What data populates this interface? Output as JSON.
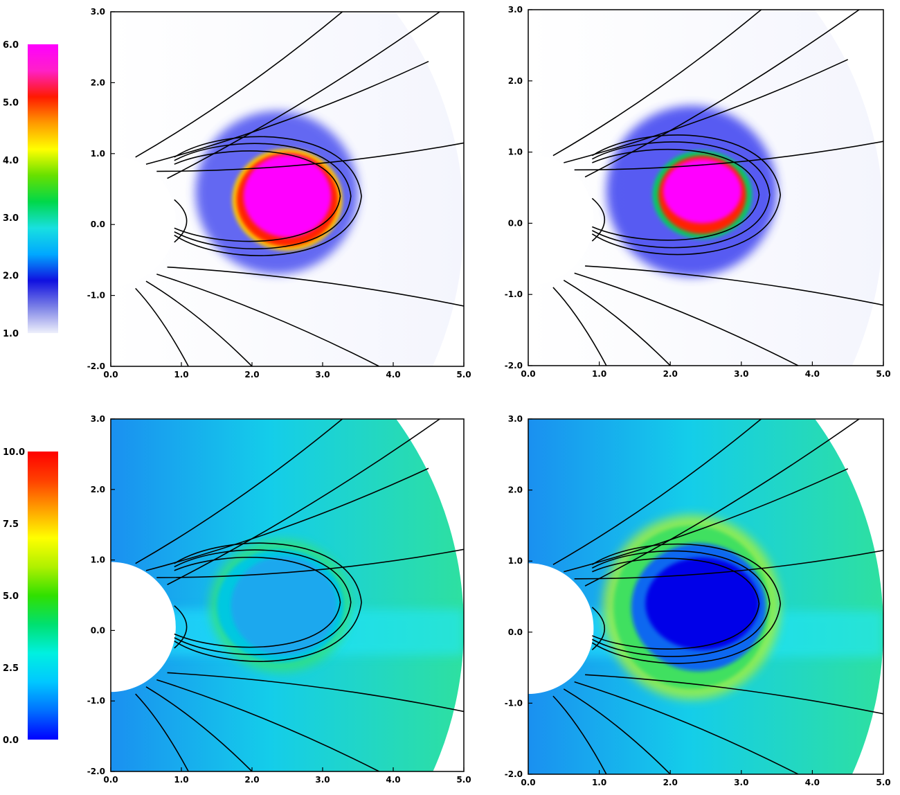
{
  "figure": {
    "colorbars": [
      {
        "id": "top",
        "min": 1.0,
        "max": 6.0,
        "tick_labels": [
          "6.0",
          "5.0",
          "4.0",
          "3.0",
          "2.0",
          "1.0"
        ],
        "stops": [
          "#eef0fb",
          "#7b80e6",
          "#1010e0",
          "#00a8ff",
          "#18e0e0",
          "#00d84a",
          "#66e000",
          "#ffff00",
          "#ff9a00",
          "#ff1a00",
          "#ff20c8",
          "#ff00ff"
        ]
      },
      {
        "id": "bottom",
        "min": 0.0,
        "max": 10.0,
        "tick_labels": [
          "10.0",
          "7.5",
          "5.0",
          "2.5",
          "0.0"
        ],
        "stops": [
          "#0000ff",
          "#0070ff",
          "#00c8ff",
          "#00f0e0",
          "#00e070",
          "#30e000",
          "#b0f000",
          "#ffff00",
          "#ffa000",
          "#ff4000",
          "#ff0000"
        ]
      }
    ]
  },
  "chart_data": [
    {
      "type": "heatmap",
      "panel": "top-left",
      "xlim": [
        0.0,
        5.0
      ],
      "ylim": [
        -2.0,
        3.0
      ],
      "x_tick_labels": [
        "0.0",
        "1.0",
        "2.0",
        "3.0",
        "4.0",
        "5.0"
      ],
      "y_tick_labels": [
        "3.0",
        "2.0",
        "1.0",
        "0.0",
        "-1.0",
        "-2.0"
      ],
      "colorbar": "top",
      "background": "#f4f5fd",
      "features": [
        {
          "kind": "sheath",
          "center": [
            2.35,
            0.45
          ],
          "radii": [
            1.15,
            1.15
          ],
          "color": "#4a50f0"
        },
        {
          "kind": "ring",
          "center": [
            2.5,
            0.35
          ],
          "radii": [
            0.78,
            0.72
          ],
          "color": "#ffd000"
        },
        {
          "kind": "ring",
          "center": [
            2.5,
            0.35
          ],
          "radii": [
            0.72,
            0.66
          ],
          "color": "#ff2000"
        },
        {
          "kind": "core",
          "center": [
            2.5,
            0.4
          ],
          "radii": [
            0.62,
            0.58
          ],
          "color": "#ff00ff"
        }
      ]
    },
    {
      "type": "heatmap",
      "panel": "top-right",
      "xlim": [
        0.0,
        5.0
      ],
      "ylim": [
        -2.0,
        3.0
      ],
      "x_tick_labels": [
        "0.0",
        "1.0",
        "2.0",
        "3.0",
        "4.0",
        "5.0"
      ],
      "y_tick_labels": [
        "3.0",
        "2.0",
        "1.0",
        "0.0",
        "-1.0",
        "-2.0"
      ],
      "colorbar": "top",
      "background": "#f4f5fd",
      "features": [
        {
          "kind": "sheath",
          "center": [
            2.3,
            0.45
          ],
          "radii": [
            1.2,
            1.2
          ],
          "color": "#3a40f0"
        },
        {
          "kind": "ring",
          "center": [
            2.45,
            0.4
          ],
          "radii": [
            0.7,
            0.62
          ],
          "color": "#00d060"
        },
        {
          "kind": "ring",
          "center": [
            2.45,
            0.4
          ],
          "radii": [
            0.62,
            0.55
          ],
          "color": "#ff2000"
        },
        {
          "kind": "core",
          "center": [
            2.45,
            0.45
          ],
          "radii": [
            0.55,
            0.45
          ],
          "color": "#ff00ff"
        }
      ]
    },
    {
      "type": "heatmap",
      "panel": "bottom-left",
      "xlim": [
        0.0,
        5.0
      ],
      "ylim": [
        -2.0,
        3.0
      ],
      "x_tick_labels": [
        "0.0",
        "1.0",
        "2.0",
        "3.0",
        "4.0",
        "5.0"
      ],
      "y_tick_labels": [
        "3.0",
        "2.0",
        "1.0",
        "0.0",
        "-1.0",
        "-2.0"
      ],
      "colorbar": "bottom",
      "background": "#14cdea",
      "features": [
        {
          "kind": "sheath",
          "center": [
            2.4,
            0.35
          ],
          "radii": [
            1.0,
            0.95
          ],
          "color": "#30e080"
        },
        {
          "kind": "ring",
          "center": [
            2.4,
            0.35
          ],
          "radii": [
            0.9,
            0.8
          ],
          "color": "#00c8e0"
        },
        {
          "kind": "core",
          "center": [
            2.45,
            0.35
          ],
          "radii": [
            0.75,
            0.7
          ],
          "color": "#1aa8ee"
        }
      ]
    },
    {
      "type": "heatmap",
      "panel": "bottom-right",
      "xlim": [
        0.0,
        5.0
      ],
      "ylim": [
        -2.0,
        3.0
      ],
      "x_tick_labels": [
        "0.0",
        "1.0",
        "2.0",
        "3.0",
        "4.0",
        "5.0"
      ],
      "y_tick_labels": [
        "3.0",
        "2.0",
        "1.0",
        "0.0",
        "-1.0",
        "-2.0"
      ],
      "colorbar": "bottom",
      "background": "#14cdea",
      "features": [
        {
          "kind": "sheath",
          "center": [
            2.3,
            0.35
          ],
          "radii": [
            1.25,
            1.3
          ],
          "color": "#a0f040"
        },
        {
          "kind": "ring",
          "center": [
            2.3,
            0.35
          ],
          "radii": [
            1.1,
            1.15
          ],
          "color": "#40e060"
        },
        {
          "kind": "ring",
          "center": [
            2.4,
            0.35
          ],
          "radii": [
            0.95,
            0.9
          ],
          "color": "#0868f0"
        },
        {
          "kind": "core",
          "center": [
            2.45,
            0.4
          ],
          "radii": [
            0.8,
            0.65
          ],
          "color": "#0000e8"
        }
      ]
    }
  ]
}
